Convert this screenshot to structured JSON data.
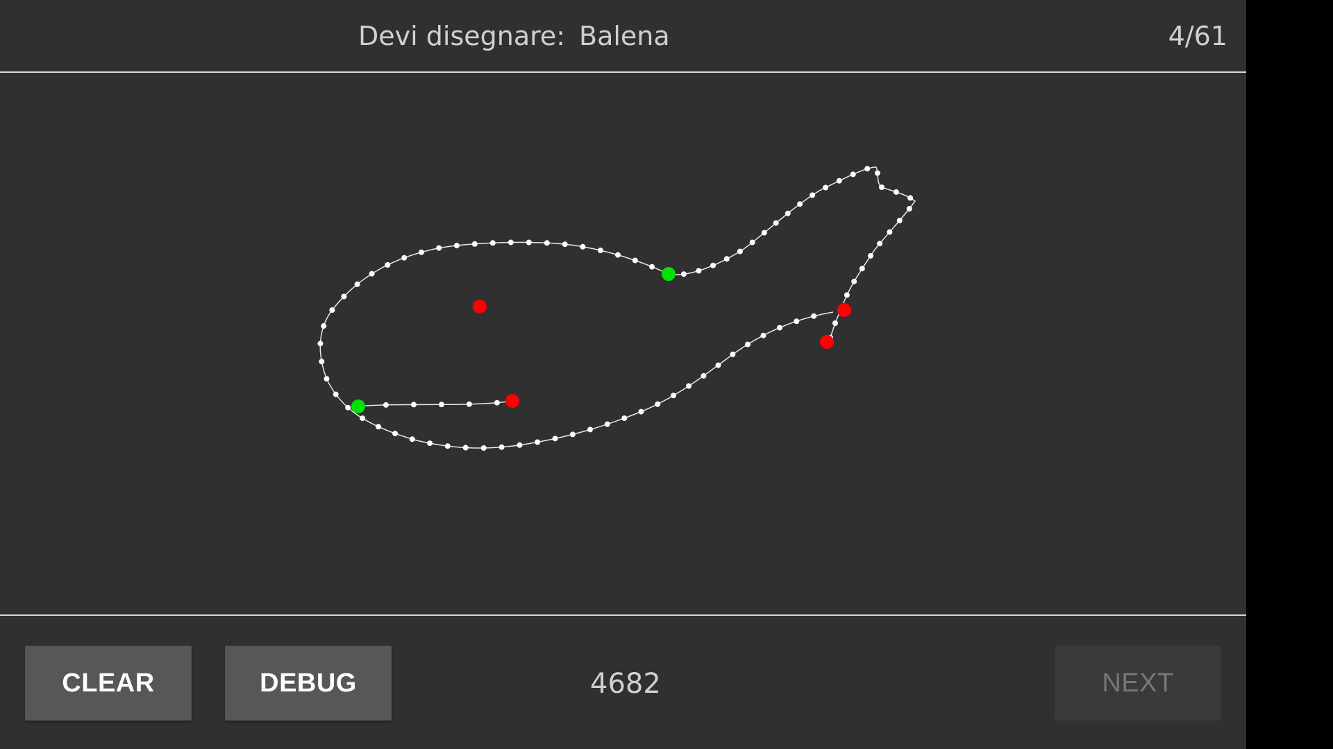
{
  "header": {
    "prompt_label": "Devi disegnare:",
    "prompt_word": "Balena",
    "counter": "4/61"
  },
  "footer": {
    "clear_label": "CLEAR",
    "debug_label": "DEBUG",
    "score": "4682",
    "next_label": "NEXT"
  },
  "colors": {
    "background": "#303030",
    "stroke": "#ffffff",
    "start_point": "#00e000",
    "end_point": "#ff0000"
  }
}
